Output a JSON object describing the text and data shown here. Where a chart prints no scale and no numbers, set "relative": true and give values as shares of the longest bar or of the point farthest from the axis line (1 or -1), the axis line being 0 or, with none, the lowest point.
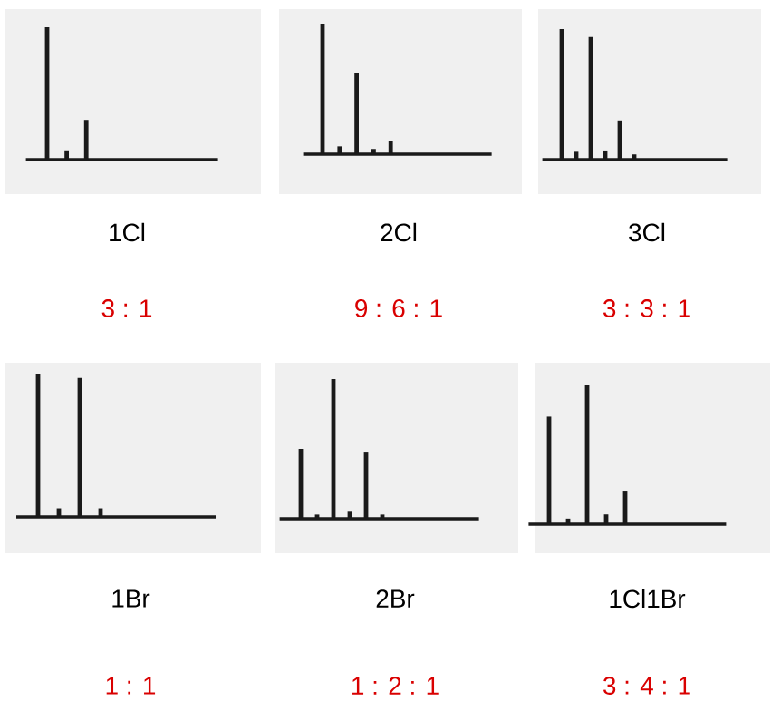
{
  "chart_data": [
    {
      "type": "bar",
      "relative": true,
      "color": "#1a1a1a",
      "xlabel": "1Cl",
      "annotations": [
        "3 : 1"
      ],
      "categories": [
        null,
        null,
        null
      ],
      "values": [
        1,
        0.07,
        0.3
      ]
    },
    {
      "type": "bar",
      "relative": true,
      "color": "#1a1a1a",
      "xlabel": "2Cl",
      "annotations": [
        "9 : 6 : 1"
      ],
      "categories": [
        null,
        null,
        null,
        null,
        null
      ],
      "values": [
        1,
        0.06,
        0.62,
        0.04,
        0.1
      ]
    },
    {
      "type": "bar",
      "relative": true,
      "color": "#1a1a1a",
      "xlabel": "3Cl",
      "annotations": [
        "3 : 3 : 1"
      ],
      "categories": [
        null,
        null,
        null,
        null,
        null,
        null
      ],
      "values": [
        1,
        0.06,
        0.94,
        0.07,
        0.3,
        0.04
      ]
    },
    {
      "type": "bar",
      "relative": true,
      "color": "#1a1a1a",
      "xlabel": "1Br",
      "annotations": [
        "1 : 1"
      ],
      "categories": [
        null,
        null,
        null,
        null
      ],
      "values": [
        1,
        0.06,
        0.97,
        0.06
      ]
    },
    {
      "type": "bar",
      "relative": true,
      "color": "#1a1a1a",
      "xlabel": "2Br",
      "annotations": [
        "1 : 2 : 1"
      ],
      "categories": [
        null,
        null,
        null,
        null,
        null,
        null
      ],
      "values": [
        0.5,
        0.03,
        1,
        0.05,
        0.48,
        0.03
      ]
    },
    {
      "type": "bar",
      "relative": true,
      "color": "#1a1a1a",
      "xlabel": "1Cl1Br",
      "annotations": [
        "3 : 4 : 1"
      ],
      "categories": [
        null,
        null,
        null,
        null,
        null
      ],
      "values": [
        0.77,
        0.04,
        1,
        0.07,
        0.24
      ]
    }
  ]
}
